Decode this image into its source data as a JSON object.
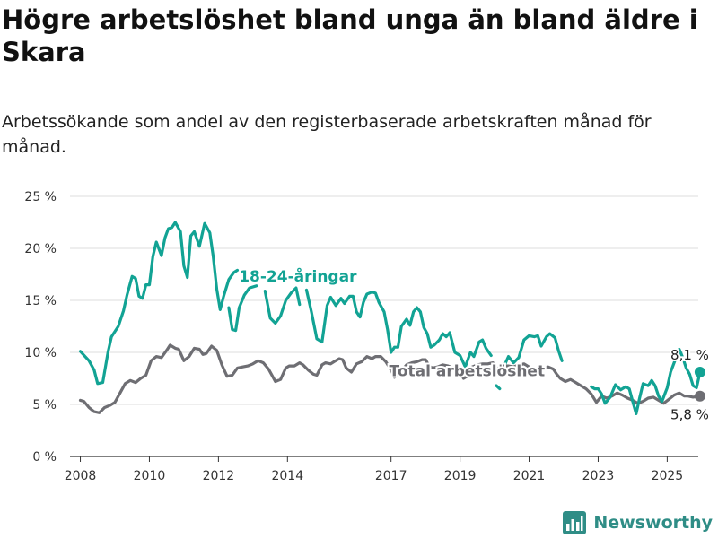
{
  "title": "Högre arbetslöshet bland unga än bland äldre i Skara",
  "subtitle": "Arbetssökande som andel av den registerbaserade arbetskraften månad för månad.",
  "brand": {
    "name": "Newsworthy",
    "icon": "bar-chart-logo-icon"
  },
  "colors": {
    "young": "#12a394",
    "total": "#6e6e73",
    "grid": "#dddddd",
    "axis": "#333333",
    "brand": "#2f8d86"
  },
  "chart_data": {
    "type": "line",
    "xlabel": "",
    "ylabel": "",
    "xlim": [
      2007.7,
      2025.9
    ],
    "ylim": [
      0,
      25
    ],
    "yticks": [
      {
        "value": 0,
        "label": "0 %"
      },
      {
        "value": 5,
        "label": "5 %"
      },
      {
        "value": 10,
        "label": "10 %"
      },
      {
        "value": 15,
        "label": "15 %"
      },
      {
        "value": 20,
        "label": "20 %"
      },
      {
        "value": 25,
        "label": "25 %"
      }
    ],
    "xticks": [
      {
        "value": 2008,
        "label": "2008"
      },
      {
        "value": 2010,
        "label": "2010"
      },
      {
        "value": 2012,
        "label": "2012"
      },
      {
        "value": 2014,
        "label": "2014"
      },
      {
        "value": 2017,
        "label": "2017"
      },
      {
        "value": 2019,
        "label": "2019"
      },
      {
        "value": 2021,
        "label": "2021"
      },
      {
        "value": 2023,
        "label": "2023"
      },
      {
        "value": 2025,
        "label": "2025"
      }
    ],
    "grid": true,
    "series": [
      {
        "name": "18-24-åringar",
        "end_label": "8,1 %",
        "points": [
          [
            2008.0,
            10.1
          ],
          [
            2008.25,
            9.2
          ],
          [
            2008.4,
            8.3
          ],
          [
            2008.5,
            7.0
          ],
          [
            2008.65,
            7.1
          ],
          [
            2008.8,
            10.0
          ],
          [
            2008.9,
            11.5
          ],
          [
            2009.1,
            12.5
          ],
          [
            2009.25,
            14.0
          ],
          [
            2009.35,
            15.5
          ],
          [
            2009.5,
            17.3
          ],
          [
            2009.6,
            17.1
          ],
          [
            2009.7,
            15.4
          ],
          [
            2009.8,
            15.2
          ],
          [
            2009.9,
            16.5
          ],
          [
            2010.0,
            16.5
          ],
          [
            2010.1,
            19.2
          ],
          [
            2010.2,
            20.6
          ],
          [
            2010.35,
            19.3
          ],
          [
            2010.45,
            21.0
          ],
          [
            2010.55,
            21.9
          ],
          [
            2010.65,
            22.0
          ],
          [
            2010.75,
            22.5
          ],
          [
            2010.9,
            21.6
          ],
          [
            2011.0,
            18.3
          ],
          [
            2011.1,
            17.2
          ],
          [
            2011.2,
            21.2
          ],
          [
            2011.3,
            21.6
          ],
          [
            2011.45,
            20.2
          ],
          [
            2011.6,
            22.4
          ],
          [
            2011.75,
            21.5
          ],
          [
            2011.85,
            19.2
          ],
          [
            2011.95,
            16.1
          ],
          [
            2012.05,
            14.1
          ],
          [
            2012.15,
            15.4
          ],
          [
            2012.3,
            17.0
          ],
          [
            2012.45,
            17.7
          ],
          [
            2012.55,
            17.9
          ]
        ],
        "points_segment_2": [
          [
            2012.3,
            14.3
          ],
          [
            2012.4,
            12.2
          ],
          [
            2012.5,
            12.1
          ],
          [
            2012.6,
            14.3
          ],
          [
            2012.75,
            15.5
          ],
          [
            2012.9,
            16.2
          ],
          [
            2013.1,
            16.4
          ]
        ],
        "points_segment_3": [
          [
            2013.35,
            15.9
          ],
          [
            2013.5,
            13.3
          ],
          [
            2013.65,
            12.8
          ],
          [
            2013.8,
            13.5
          ],
          [
            2013.95,
            15.0
          ],
          [
            2014.1,
            15.7
          ],
          [
            2014.25,
            16.2
          ],
          [
            2014.35,
            14.6
          ]
        ],
        "points_segment_4": [
          [
            2014.55,
            16.0
          ],
          [
            2014.7,
            13.8
          ],
          [
            2014.85,
            11.3
          ],
          [
            2015.0,
            11.0
          ],
          [
            2015.15,
            14.5
          ],
          [
            2015.25,
            15.3
          ],
          [
            2015.4,
            14.5
          ],
          [
            2015.55,
            15.2
          ],
          [
            2015.65,
            14.7
          ],
          [
            2015.8,
            15.4
          ],
          [
            2015.9,
            15.4
          ],
          [
            2016.0,
            13.9
          ],
          [
            2016.1,
            13.4
          ],
          [
            2016.2,
            14.8
          ],
          [
            2016.3,
            15.6
          ],
          [
            2016.45,
            15.8
          ],
          [
            2016.55,
            15.7
          ],
          [
            2016.65,
            14.8
          ],
          [
            2016.8,
            13.9
          ],
          [
            2016.9,
            12.2
          ],
          [
            2017.0,
            10.0
          ],
          [
            2017.1,
            10.5
          ],
          [
            2017.2,
            10.5
          ],
          [
            2017.3,
            12.5
          ],
          [
            2017.45,
            13.2
          ],
          [
            2017.55,
            12.6
          ],
          [
            2017.65,
            13.9
          ],
          [
            2017.75,
            14.3
          ],
          [
            2017.85,
            13.9
          ],
          [
            2017.95,
            12.4
          ],
          [
            2018.05,
            11.8
          ],
          [
            2018.15,
            10.5
          ],
          [
            2018.25,
            10.7
          ],
          [
            2018.4,
            11.2
          ],
          [
            2018.5,
            11.8
          ],
          [
            2018.6,
            11.5
          ],
          [
            2018.7,
            11.9
          ],
          [
            2018.85,
            10.0
          ],
          [
            2019.0,
            9.7
          ],
          [
            2019.15,
            8.6
          ],
          [
            2019.3,
            10.0
          ],
          [
            2019.4,
            9.6
          ],
          [
            2019.55,
            11.0
          ],
          [
            2019.65,
            11.2
          ],
          [
            2019.75,
            10.4
          ],
          [
            2019.9,
            9.7
          ]
        ],
        "points_segment_5": [
          [
            2020.05,
            6.8
          ],
          [
            2020.15,
            6.5
          ]
        ],
        "points_segment_6": [
          [
            2020.25,
            8.5
          ],
          [
            2020.4,
            9.6
          ],
          [
            2020.55,
            9.0
          ],
          [
            2020.7,
            9.5
          ],
          [
            2020.85,
            11.2
          ],
          [
            2021.0,
            11.6
          ],
          [
            2021.15,
            11.5
          ],
          [
            2021.25,
            11.6
          ],
          [
            2021.35,
            10.6
          ],
          [
            2021.5,
            11.5
          ],
          [
            2021.6,
            11.8
          ],
          [
            2021.75,
            11.4
          ],
          [
            2021.85,
            10.2
          ],
          [
            2021.95,
            9.2
          ]
        ],
        "points_segment_7": [
          [
            2022.8,
            6.7
          ],
          [
            2022.9,
            6.5
          ],
          [
            2023.0,
            6.5
          ],
          [
            2023.1,
            6.0
          ],
          [
            2023.2,
            5.1
          ],
          [
            2023.35,
            5.7
          ],
          [
            2023.5,
            6.9
          ],
          [
            2023.65,
            6.4
          ],
          [
            2023.8,
            6.7
          ],
          [
            2023.9,
            6.5
          ],
          [
            2024.0,
            5.3
          ],
          [
            2024.1,
            4.1
          ],
          [
            2024.2,
            5.6
          ],
          [
            2024.3,
            7.0
          ],
          [
            2024.45,
            6.8
          ],
          [
            2024.55,
            7.3
          ],
          [
            2024.65,
            6.8
          ],
          [
            2024.75,
            5.8
          ],
          [
            2024.85,
            5.3
          ],
          [
            2025.0,
            6.6
          ],
          [
            2025.1,
            8.1
          ],
          [
            2025.2,
            9.0
          ],
          [
            2025.35,
            10.3
          ],
          [
            2025.45,
            9.5
          ],
          [
            2025.55,
            8.5
          ],
          [
            2025.65,
            7.9
          ],
          [
            2025.75,
            6.8
          ],
          [
            2025.85,
            6.6
          ],
          [
            2025.95,
            8.1
          ]
        ],
        "label_at": [
          2014.3,
          16.8
        ]
      },
      {
        "name": "Total arbetslöshet",
        "end_label": "5,8 %",
        "points": [
          [
            2008.0,
            5.4
          ],
          [
            2008.1,
            5.3
          ],
          [
            2008.25,
            4.7
          ],
          [
            2008.4,
            4.3
          ],
          [
            2008.55,
            4.2
          ],
          [
            2008.7,
            4.7
          ],
          [
            2008.85,
            4.9
          ],
          [
            2009.0,
            5.2
          ],
          [
            2009.15,
            6.1
          ],
          [
            2009.3,
            7.0
          ],
          [
            2009.45,
            7.3
          ],
          [
            2009.6,
            7.1
          ],
          [
            2009.75,
            7.5
          ],
          [
            2009.9,
            7.8
          ],
          [
            2010.05,
            9.2
          ],
          [
            2010.2,
            9.6
          ],
          [
            2010.35,
            9.5
          ],
          [
            2010.5,
            10.2
          ],
          [
            2010.6,
            10.7
          ],
          [
            2010.75,
            10.4
          ],
          [
            2010.85,
            10.3
          ],
          [
            2011.0,
            9.2
          ],
          [
            2011.15,
            9.6
          ],
          [
            2011.3,
            10.4
          ],
          [
            2011.45,
            10.3
          ],
          [
            2011.55,
            9.8
          ],
          [
            2011.65,
            9.9
          ],
          [
            2011.8,
            10.6
          ],
          [
            2011.95,
            10.2
          ],
          [
            2012.1,
            8.8
          ],
          [
            2012.25,
            7.7
          ],
          [
            2012.4,
            7.8
          ],
          [
            2012.55,
            8.5
          ],
          [
            2012.7,
            8.6
          ],
          [
            2012.85,
            8.7
          ],
          [
            2013.0,
            8.9
          ],
          [
            2013.15,
            9.2
          ],
          [
            2013.3,
            9.0
          ],
          [
            2013.45,
            8.4
          ],
          [
            2013.55,
            7.8
          ],
          [
            2013.65,
            7.2
          ],
          [
            2013.8,
            7.4
          ],
          [
            2013.95,
            8.5
          ],
          [
            2014.05,
            8.7
          ],
          [
            2014.2,
            8.7
          ],
          [
            2014.35,
            9.0
          ],
          [
            2014.45,
            8.8
          ],
          [
            2014.6,
            8.3
          ],
          [
            2014.75,
            7.9
          ],
          [
            2014.85,
            7.8
          ],
          [
            2015.0,
            8.8
          ],
          [
            2015.1,
            9.0
          ],
          [
            2015.25,
            8.9
          ],
          [
            2015.35,
            9.1
          ],
          [
            2015.5,
            9.4
          ],
          [
            2015.6,
            9.3
          ],
          [
            2015.7,
            8.5
          ],
          [
            2015.85,
            8.1
          ],
          [
            2016.0,
            8.9
          ],
          [
            2016.15,
            9.1
          ],
          [
            2016.3,
            9.6
          ],
          [
            2016.45,
            9.4
          ],
          [
            2016.55,
            9.6
          ],
          [
            2016.7,
            9.6
          ],
          [
            2016.85,
            9.1
          ],
          [
            2017.0,
            8.3
          ],
          [
            2017.1,
            7.6
          ],
          [
            2017.2,
            7.8
          ],
          [
            2017.3,
            8.2
          ],
          [
            2017.45,
            8.8
          ],
          [
            2017.6,
            9.0
          ],
          [
            2017.75,
            9.1
          ],
          [
            2017.9,
            9.3
          ],
          [
            2018.0,
            9.3
          ],
          [
            2018.1,
            8.7
          ],
          [
            2018.2,
            8.5
          ],
          [
            2018.35,
            8.6
          ],
          [
            2018.5,
            8.8
          ],
          [
            2018.65,
            8.7
          ],
          [
            2018.8,
            8.5
          ],
          [
            2018.95,
            8.3
          ],
          [
            2019.1,
            7.5
          ],
          [
            2019.2,
            7.7
          ],
          [
            2019.35,
            8.6
          ],
          [
            2019.5,
            8.8
          ],
          [
            2019.65,
            8.9
          ],
          [
            2019.8,
            8.9
          ],
          [
            2019.95,
            9.0
          ],
          [
            2020.1,
            8.3
          ],
          [
            2020.25,
            8.7
          ],
          [
            2020.4,
            8.7
          ],
          [
            2020.55,
            8.6
          ],
          [
            2020.7,
            8.8
          ],
          [
            2020.85,
            8.9
          ],
          [
            2021.0,
            8.6
          ],
          [
            2021.1,
            8.0
          ],
          [
            2021.25,
            7.9
          ],
          [
            2021.4,
            8.5
          ],
          [
            2021.55,
            8.6
          ],
          [
            2021.7,
            8.4
          ],
          [
            2021.8,
            7.9
          ],
          [
            2021.9,
            7.5
          ],
          [
            2022.05,
            7.2
          ],
          [
            2022.2,
            7.4
          ],
          [
            2022.35,
            7.1
          ],
          [
            2022.5,
            6.8
          ],
          [
            2022.65,
            6.5
          ],
          [
            2022.8,
            6.0
          ],
          [
            2022.95,
            5.2
          ],
          [
            2023.1,
            5.8
          ],
          [
            2023.25,
            5.6
          ],
          [
            2023.4,
            5.8
          ],
          [
            2023.55,
            6.1
          ],
          [
            2023.7,
            5.9
          ],
          [
            2023.85,
            5.6
          ],
          [
            2024.0,
            5.4
          ],
          [
            2024.15,
            5.1
          ],
          [
            2024.3,
            5.3
          ],
          [
            2024.45,
            5.6
          ],
          [
            2024.6,
            5.7
          ],
          [
            2024.75,
            5.4
          ],
          [
            2024.9,
            5.1
          ],
          [
            2025.05,
            5.5
          ],
          [
            2025.2,
            5.9
          ],
          [
            2025.35,
            6.1
          ],
          [
            2025.5,
            5.8
          ],
          [
            2025.6,
            5.8
          ],
          [
            2025.75,
            5.7
          ],
          [
            2025.95,
            5.8
          ]
        ],
        "label_at": [
          2019.2,
          7.7
        ]
      }
    ]
  }
}
